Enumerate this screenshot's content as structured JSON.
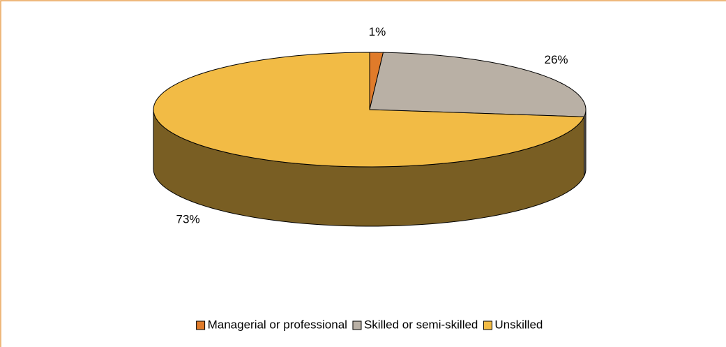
{
  "chart_data": {
    "type": "pie3d",
    "categories": [
      "Managerial or professional",
      "Skilled or semi-skilled",
      "Unskilled"
    ],
    "values": [
      1,
      26,
      73
    ],
    "value_labels": [
      "1%",
      "26%",
      "73%"
    ],
    "colors": [
      "#e07b2a",
      "#b9b0a5",
      "#f2bb45"
    ],
    "legend": "bottom"
  }
}
